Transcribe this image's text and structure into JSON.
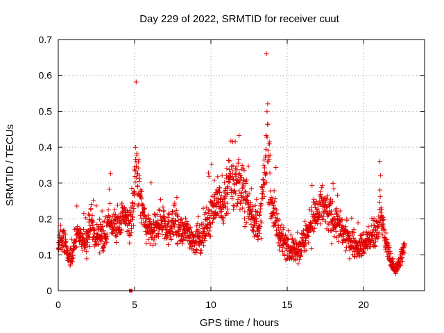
{
  "chart_data": {
    "type": "scatter",
    "title": "Day 229 of 2022, SRMTID for receiver cuut",
    "xlabel": "GPS time / hours",
    "ylabel": "SRMTID / TECUs",
    "xlim": [
      0,
      24
    ],
    "ylim": [
      0,
      0.7
    ],
    "x_ticks": [
      "0",
      "5",
      "10",
      "15",
      "20"
    ],
    "y_ticks": [
      "0",
      "0.1",
      "0.2",
      "0.3",
      "0.4",
      "0.5",
      "0.6",
      "0.7"
    ],
    "grid": true,
    "marker": "plus",
    "color": "#e00000",
    "series": [
      {
        "name": "SRMTID",
        "description": "Trend of SRMTID values sampled across the day (x in hours, y in TECU)",
        "x": [
          0.0,
          0.3,
          0.5,
          0.7,
          0.9,
          1.1,
          1.3,
          1.6,
          1.9,
          2.2,
          2.4,
          2.7,
          3.0,
          3.3,
          3.6,
          3.9,
          4.1,
          4.4,
          4.7,
          4.9,
          5.1,
          5.3,
          5.5,
          5.7,
          6.0,
          6.3,
          6.6,
          6.9,
          7.2,
          7.5,
          7.8,
          8.1,
          8.4,
          8.7,
          9.0,
          9.3,
          9.6,
          9.9,
          10.2,
          10.5,
          10.8,
          11.0,
          11.2,
          11.5,
          11.8,
          12.0,
          12.3,
          12.6,
          12.9,
          13.2,
          13.5,
          13.7,
          13.9,
          14.1,
          14.3,
          14.6,
          14.9,
          15.2,
          15.5,
          15.8,
          16.1,
          16.4,
          16.7,
          17.0,
          17.3,
          17.6,
          17.9,
          18.2,
          18.5,
          18.8,
          19.1,
          19.4,
          19.7,
          20.0,
          20.3,
          20.6,
          20.9,
          21.1,
          21.4,
          21.7,
          21.9,
          22.1,
          22.3,
          22.5,
          22.7
        ],
        "y": [
          0.13,
          0.15,
          0.12,
          0.09,
          0.1,
          0.14,
          0.16,
          0.13,
          0.15,
          0.2,
          0.14,
          0.16,
          0.15,
          0.18,
          0.19,
          0.17,
          0.2,
          0.21,
          0.18,
          0.22,
          0.36,
          0.28,
          0.22,
          0.18,
          0.17,
          0.16,
          0.19,
          0.2,
          0.17,
          0.19,
          0.18,
          0.16,
          0.17,
          0.15,
          0.14,
          0.13,
          0.17,
          0.2,
          0.24,
          0.25,
          0.23,
          0.28,
          0.3,
          0.27,
          0.31,
          0.28,
          0.26,
          0.22,
          0.19,
          0.18,
          0.3,
          0.45,
          0.26,
          0.22,
          0.19,
          0.14,
          0.13,
          0.12,
          0.11,
          0.12,
          0.14,
          0.17,
          0.2,
          0.21,
          0.24,
          0.22,
          0.2,
          0.19,
          0.17,
          0.15,
          0.14,
          0.13,
          0.12,
          0.13,
          0.14,
          0.15,
          0.16,
          0.24,
          0.14,
          0.1,
          0.07,
          0.06,
          0.07,
          0.1,
          0.12
        ],
        "spread": [
          0.03,
          0.04,
          0.04,
          0.03,
          0.03,
          0.04,
          0.04,
          0.04,
          0.05,
          0.06,
          0.05,
          0.05,
          0.05,
          0.06,
          0.06,
          0.06,
          0.06,
          0.06,
          0.06,
          0.08,
          0.12,
          0.1,
          0.07,
          0.06,
          0.06,
          0.06,
          0.06,
          0.07,
          0.06,
          0.06,
          0.06,
          0.05,
          0.05,
          0.05,
          0.05,
          0.05,
          0.06,
          0.06,
          0.08,
          0.08,
          0.08,
          0.1,
          0.1,
          0.09,
          0.1,
          0.09,
          0.09,
          0.07,
          0.06,
          0.06,
          0.12,
          0.15,
          0.1,
          0.08,
          0.06,
          0.05,
          0.05,
          0.04,
          0.04,
          0.05,
          0.05,
          0.06,
          0.07,
          0.07,
          0.08,
          0.07,
          0.07,
          0.06,
          0.06,
          0.05,
          0.05,
          0.04,
          0.04,
          0.05,
          0.05,
          0.05,
          0.06,
          0.07,
          0.04,
          0.03,
          0.02,
          0.02,
          0.02,
          0.03,
          0.04
        ]
      }
    ],
    "annotations": [
      {
        "x": 4.75,
        "y": 0.0,
        "marker": "square",
        "note": "point at zero"
      }
    ]
  }
}
